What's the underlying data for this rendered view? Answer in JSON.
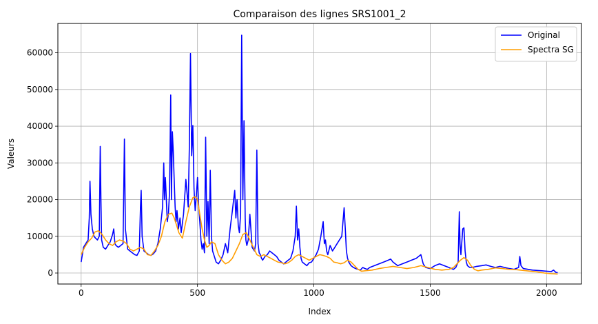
{
  "chart_data": {
    "type": "line",
    "title": "Comparaison des lignes SRS1001_2",
    "xlabel": "Index",
    "ylabel": "Valeurs",
    "xlim": [
      -100,
      2150
    ],
    "ylim": [
      -3000,
      68000
    ],
    "xticks": [
      0,
      500,
      1000,
      1500,
      2000
    ],
    "yticks": [
      0,
      10000,
      20000,
      30000,
      40000,
      50000,
      60000
    ],
    "grid": true,
    "legend_position": "upper right",
    "series": [
      {
        "name": "Original",
        "color": "#0000ff",
        "x": [
          0,
          10,
          20,
          30,
          35,
          38,
          42,
          48,
          55,
          62,
          70,
          78,
          82,
          85,
          88,
          95,
          105,
          115,
          125,
          135,
          140,
          145,
          150,
          160,
          170,
          180,
          186,
          190,
          200,
          210,
          220,
          230,
          240,
          250,
          255,
          258,
          262,
          270,
          280,
          290,
          300,
          310,
          320,
          330,
          340,
          350,
          355,
          358,
          362,
          370,
          375,
          380,
          385,
          388,
          392,
          396,
          400,
          404,
          408,
          412,
          418,
          425,
          430,
          440,
          450,
          460,
          465,
          470,
          475,
          480,
          485,
          490,
          495,
          500,
          505,
          510,
          515,
          520,
          525,
          530,
          535,
          540,
          545,
          550,
          555,
          560,
          565,
          570,
          575,
          580,
          590,
          600,
          610,
          620,
          630,
          640,
          650,
          660,
          665,
          670,
          675,
          680,
          685,
          690,
          695,
          700,
          705,
          708,
          712,
          718,
          725,
          735,
          745,
          750,
          755,
          760,
          765,
          770,
          775,
          780,
          790,
          800,
          810,
          820,
          830,
          840,
          850,
          860,
          870,
          880,
          890,
          900,
          910,
          920,
          925,
          930,
          935,
          940,
          945,
          950,
          960,
          970,
          980,
          990,
          1000,
          1010,
          1020,
          1030,
          1040,
          1045,
          1050,
          1055,
          1060,
          1070,
          1080,
          1090,
          1100,
          1110,
          1120,
          1130,
          1135,
          1140,
          1145,
          1150,
          1160,
          1170,
          1180,
          1190,
          1200,
          1210,
          1220,
          1230,
          1240,
          1260,
          1280,
          1300,
          1320,
          1330,
          1340,
          1350,
          1360,
          1380,
          1400,
          1420,
          1440,
          1460,
          1470,
          1480,
          1500,
          1520,
          1540,
          1560,
          1580,
          1600,
          1610,
          1620,
          1625,
          1628,
          1632,
          1640,
          1645,
          1650,
          1655,
          1660,
          1670,
          1680,
          1700,
          1720,
          1740,
          1760,
          1780,
          1800,
          1820,
          1840,
          1860,
          1880,
          1885,
          1890,
          1900,
          1920,
          1940,
          1960,
          1980,
          2000,
          2020,
          2030,
          2040,
          2048
        ],
        "y": [
          3000,
          7000,
          8000,
          9000,
          15000,
          25000,
          16000,
          12000,
          10000,
          9500,
          9000,
          10000,
          34500,
          20000,
          9000,
          7000,
          6500,
          7500,
          8500,
          10500,
          12000,
          8000,
          7500,
          7000,
          7500,
          8000,
          36500,
          12000,
          6500,
          6000,
          5500,
          5000,
          4800,
          6000,
          18000,
          22500,
          10000,
          6000,
          5500,
          5000,
          4800,
          5200,
          6000,
          8000,
          12000,
          18000,
          30000,
          20000,
          26000,
          14000,
          16000,
          22000,
          48500,
          20000,
          38500,
          33000,
          25000,
          18000,
          14000,
          17000,
          12000,
          15000,
          11000,
          16000,
          25500,
          18000,
          34000,
          59800,
          32000,
          40200,
          23000,
          17000,
          21000,
          26000,
          18000,
          14000,
          9000,
          6500,
          8000,
          5500,
          37000,
          10000,
          19500,
          8000,
          28000,
          10000,
          6000,
          5000,
          4000,
          3000,
          2500,
          3500,
          5000,
          8000,
          5500,
          12000,
          17000,
          22500,
          15000,
          20000,
          13000,
          11000,
          16000,
          64800,
          20000,
          41500,
          15000,
          9000,
          7500,
          9000,
          16000,
          7000,
          6000,
          8000,
          33500,
          8000,
          5500,
          5000,
          4000,
          3500,
          4500,
          5000,
          6000,
          5500,
          5000,
          4500,
          3500,
          3000,
          2500,
          3000,
          3500,
          4000,
          6000,
          10000,
          18200,
          9000,
          12000,
          7000,
          4000,
          3000,
          2500,
          2000,
          2800,
          3000,
          4000,
          5000,
          6500,
          10000,
          14000,
          8000,
          9000,
          6000,
          5000,
          7500,
          6000,
          7000,
          8000,
          9000,
          10000,
          17800,
          12000,
          6000,
          4000,
          3000,
          2000,
          1500,
          1200,
          1000,
          800,
          1500,
          1200,
          1000,
          1500,
          2000,
          2500,
          3000,
          3500,
          3800,
          3000,
          2500,
          2000,
          2500,
          3000,
          3500,
          4000,
          5000,
          2500,
          1500,
          1200,
          2000,
          2500,
          2000,
          1500,
          1000,
          1500,
          3000,
          16700,
          8000,
          5000,
          12000,
          12300,
          6000,
          3000,
          2000,
          1500,
          1500,
          1800,
          2000,
          2200,
          1800,
          1500,
          1800,
          1500,
          1200,
          1000,
          1500,
          4500,
          2000,
          1200,
          1000,
          800,
          700,
          600,
          500,
          400,
          800,
          200,
          100
        ]
      },
      {
        "name": "Spectra SG",
        "color": "#ff9d00",
        "x": [
          0,
          15,
          30,
          45,
          60,
          75,
          90,
          105,
          120,
          135,
          150,
          165,
          180,
          195,
          210,
          225,
          240,
          255,
          270,
          285,
          300,
          315,
          330,
          345,
          360,
          375,
          390,
          400,
          410,
          420,
          435,
          450,
          465,
          480,
          490,
          500,
          510,
          520,
          530,
          540,
          550,
          560,
          575,
          590,
          605,
          620,
          635,
          650,
          665,
          680,
          695,
          710,
          725,
          740,
          755,
          770,
          785,
          800,
          815,
          830,
          845,
          860,
          875,
          890,
          905,
          920,
          935,
          950,
          965,
          980,
          995,
          1010,
          1025,
          1040,
          1055,
          1070,
          1085,
          1100,
          1115,
          1130,
          1145,
          1160,
          1175,
          1190,
          1205,
          1220,
          1250,
          1280,
          1310,
          1340,
          1370,
          1400,
          1430,
          1460,
          1490,
          1520,
          1550,
          1580,
          1600,
          1615,
          1630,
          1645,
          1660,
          1675,
          1690,
          1705,
          1720,
          1750,
          1780,
          1810,
          1840,
          1870,
          1900,
          1930,
          1960,
          1990,
          2020,
          2048
        ],
        "y": [
          5000,
          7000,
          8500,
          9500,
          11200,
          11500,
          10500,
          9000,
          8000,
          7500,
          8500,
          9000,
          8700,
          8000,
          6500,
          6000,
          6500,
          7000,
          6500,
          5000,
          4800,
          6000,
          7500,
          10000,
          14000,
          16000,
          16300,
          15000,
          13000,
          11000,
          9500,
          14000,
          18000,
          20500,
          20800,
          20000,
          16000,
          12000,
          9000,
          7000,
          7500,
          8500,
          8000,
          5000,
          3500,
          2500,
          3000,
          4000,
          6000,
          8000,
          10500,
          11000,
          9000,
          7000,
          5000,
          4500,
          5000,
          4500,
          4000,
          3500,
          3000,
          2800,
          2500,
          2800,
          3500,
          4500,
          5000,
          4500,
          4000,
          3500,
          4000,
          4500,
          5000,
          4800,
          4500,
          4000,
          3000,
          2800,
          2500,
          2800,
          3500,
          3000,
          2000,
          1000,
          500,
          600,
          800,
          1200,
          1500,
          1800,
          1500,
          1200,
          1500,
          2000,
          1500,
          1000,
          800,
          1000,
          1500,
          2500,
          3500,
          4200,
          3500,
          2000,
          1000,
          600,
          800,
          1000,
          1400,
          1200,
          1000,
          900,
          700,
          500,
          300,
          0,
          -200,
          -300
        ]
      }
    ]
  }
}
